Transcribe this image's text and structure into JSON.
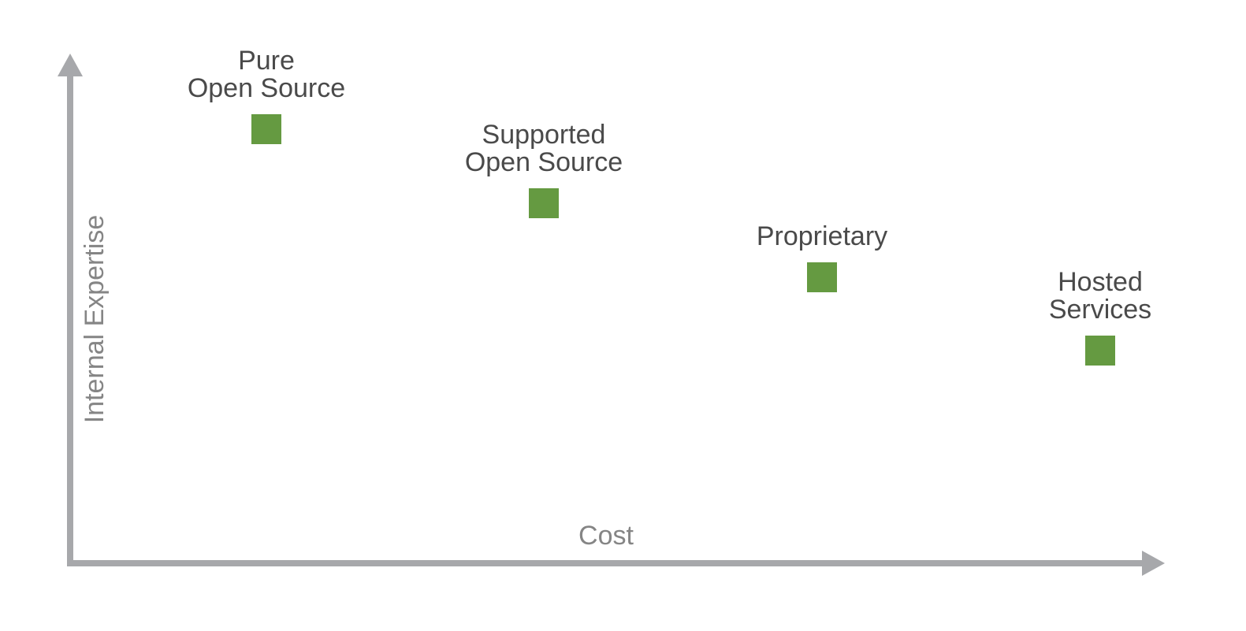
{
  "axes": {
    "x_label": "Cost",
    "y_label": "Internal Expertise"
  },
  "nodes": [
    {
      "label": [
        "Pure",
        "Open Source"
      ]
    },
    {
      "label": [
        "Supported",
        "Open Source"
      ]
    },
    {
      "label": [
        "Proprietary"
      ]
    },
    {
      "label": [
        "Hosted",
        "Services"
      ]
    }
  ]
}
